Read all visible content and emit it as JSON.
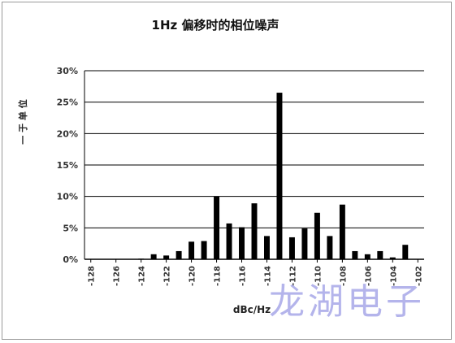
{
  "chart_data": {
    "type": "bar",
    "title": "1Hz 偏移时的相位噪声",
    "xlabel": "dBc/Hz",
    "ylabel": "一 于 单 位",
    "ylim": [
      0,
      30
    ],
    "yticks": [
      "0%",
      "5%",
      "10%",
      "15%",
      "20%",
      "25%",
      "30%"
    ],
    "xticks": [
      "-128",
      "-126",
      "-124",
      "-122",
      "-120",
      "-118",
      "-116",
      "-114",
      "-112",
      "-110",
      "-108",
      "-106",
      "-104",
      "-102"
    ],
    "grid": true,
    "x": [
      -128,
      -127,
      -126,
      -125,
      -124,
      -123,
      -122,
      -121,
      -120,
      -119,
      -118,
      -117,
      -116,
      -115,
      -114,
      -113,
      -112,
      -111,
      -110,
      -109,
      -108,
      -107,
      -106,
      -105,
      -104,
      -103,
      -102
    ],
    "values": [
      0,
      0,
      0,
      0,
      0.1,
      0.8,
      0.6,
      1.3,
      2.8,
      2.9,
      10.0,
      5.7,
      5.1,
      8.9,
      3.7,
      26.5,
      3.5,
      4.9,
      7.4,
      3.7,
      8.7,
      1.3,
      0.8,
      1.3,
      0.3,
      2.3,
      0
    ],
    "bar_color": "#000000"
  },
  "watermark": "龙湖电子"
}
